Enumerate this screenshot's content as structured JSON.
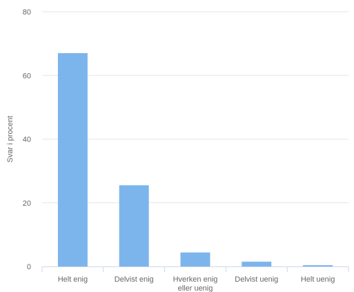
{
  "chart_data": {
    "type": "bar",
    "title": "",
    "xlabel": "",
    "ylabel": "Svar i procent",
    "categories": [
      [
        "Helt enig"
      ],
      [
        "Delvist enig"
      ],
      [
        "Hverken enig",
        "eller uenig"
      ],
      [
        "Delvist uenig"
      ],
      [
        "Helt uenig"
      ]
    ],
    "values": [
      67,
      25.5,
      4.4,
      1.5,
      0.4
    ],
    "ylim": [
      0,
      80
    ],
    "yticks": [
      0,
      20,
      40,
      60,
      80
    ],
    "grid": true,
    "legend": "none",
    "bar_color": "#7cb5ec",
    "grid_color": "#e6e6e6",
    "axis_color": "#ccd6eb"
  }
}
